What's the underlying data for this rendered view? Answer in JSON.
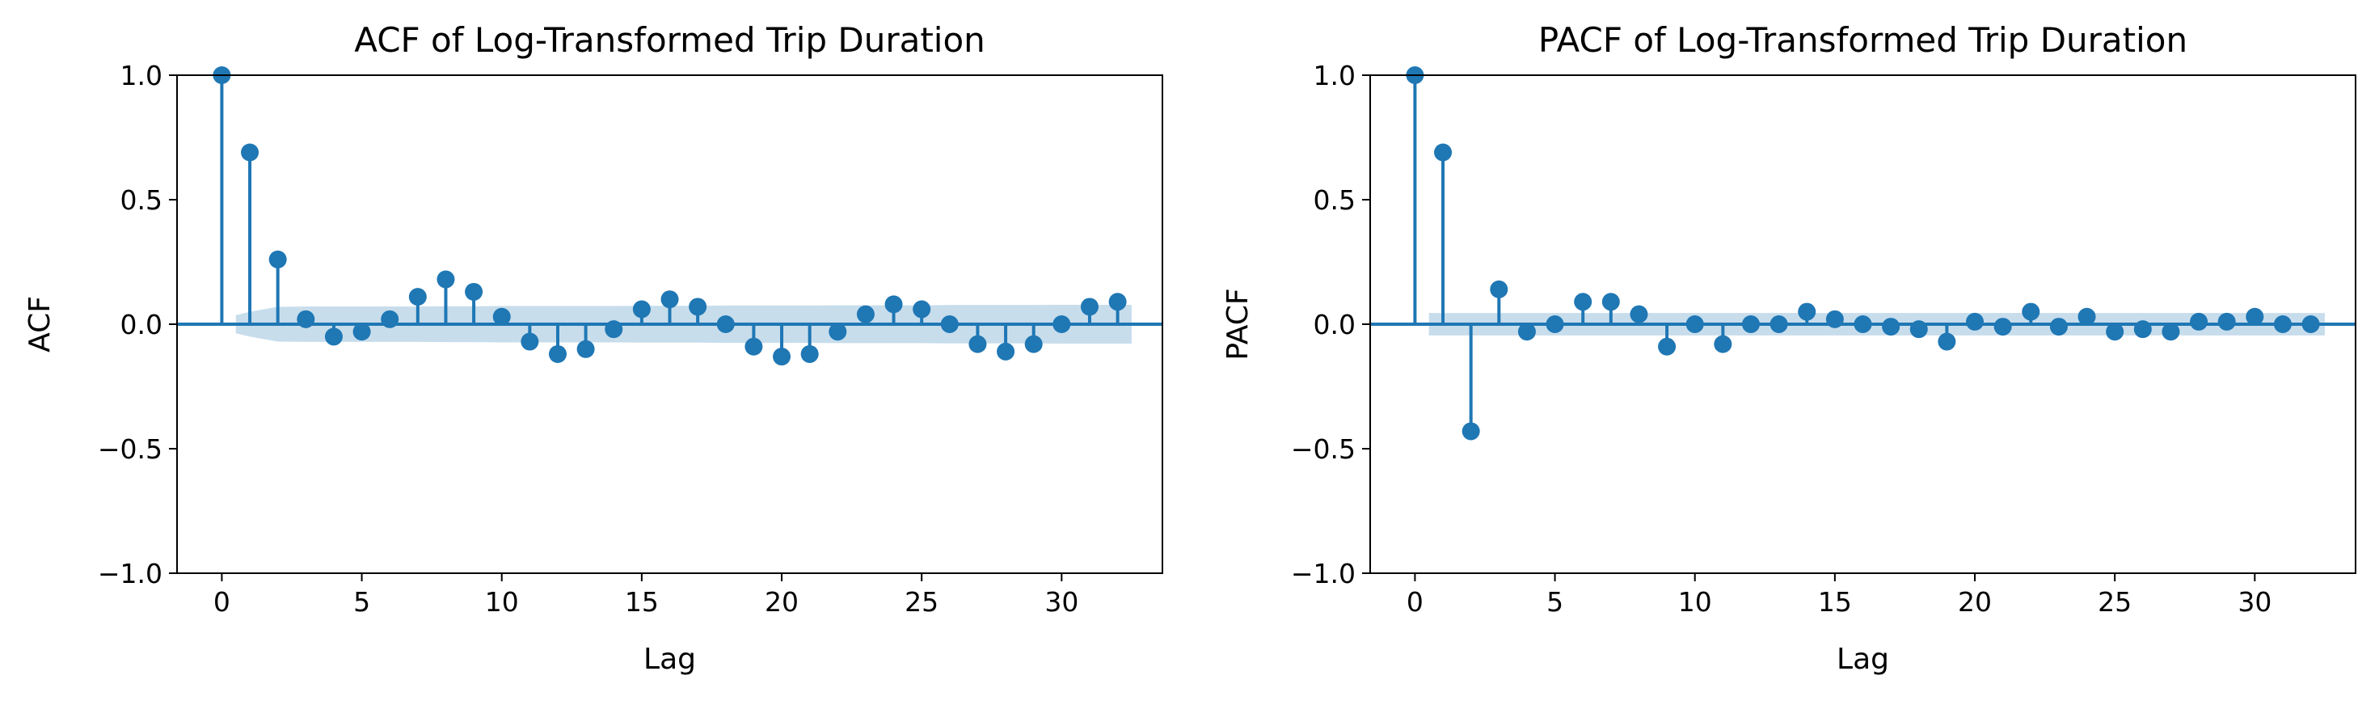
{
  "chart_data": [
    {
      "type": "stem",
      "title": "ACF of Log-Transformed Trip Duration",
      "xlabel": "Lag",
      "ylabel": "ACF",
      "xlim": [
        -1.6,
        33.6
      ],
      "ylim": [
        -1.0,
        1.0
      ],
      "xticks": [
        0,
        5,
        10,
        15,
        20,
        25,
        30
      ],
      "yticks": [
        -1.0,
        -0.5,
        0.0,
        0.5,
        1.0
      ],
      "xtick_labels": [
        "0",
        "5",
        "10",
        "15",
        "20",
        "25",
        "30"
      ],
      "ytick_labels": [
        "−1.0",
        "−0.5",
        "0.0",
        "0.5",
        "1.0"
      ],
      "grid": false,
      "color": "#1f77b4",
      "band_color": "#1f77b4",
      "series": [
        {
          "x": [
            0,
            1,
            2,
            3,
            4,
            5,
            6,
            7,
            8,
            9,
            10,
            11,
            12,
            13,
            14,
            15,
            16,
            17,
            18,
            19,
            20,
            21,
            22,
            23,
            24,
            25,
            26,
            27,
            28,
            29,
            30,
            31,
            32
          ],
          "values": [
            1.0,
            0.69,
            0.26,
            0.02,
            -0.05,
            -0.03,
            0.02,
            0.11,
            0.18,
            0.13,
            0.03,
            -0.07,
            -0.12,
            -0.1,
            -0.02,
            0.06,
            0.1,
            0.07,
            0.0,
            -0.09,
            -0.13,
            -0.12,
            -0.03,
            0.04,
            0.08,
            0.06,
            0.0,
            -0.08,
            -0.11,
            -0.08,
            0.0,
            0.07,
            0.09
          ]
        }
      ],
      "confidence_band": {
        "x": [
          0.5,
          1,
          2,
          3,
          4,
          5,
          6,
          7,
          8,
          9,
          10,
          11,
          12,
          13,
          14,
          15,
          16,
          17,
          18,
          19,
          20,
          21,
          22,
          23,
          24,
          25,
          26,
          27,
          28,
          29,
          30,
          31,
          32,
          32.5
        ],
        "upper": [
          0.036,
          0.05,
          0.07,
          0.071,
          0.071,
          0.071,
          0.071,
          0.071,
          0.072,
          0.072,
          0.073,
          0.073,
          0.073,
          0.073,
          0.073,
          0.074,
          0.074,
          0.074,
          0.075,
          0.075,
          0.075,
          0.075,
          0.076,
          0.076,
          0.076,
          0.076,
          0.077,
          0.077,
          0.077,
          0.077,
          0.078,
          0.078,
          0.078,
          0.078
        ],
        "lower": [
          -0.036,
          -0.05,
          -0.07,
          -0.071,
          -0.071,
          -0.071,
          -0.071,
          -0.071,
          -0.072,
          -0.072,
          -0.073,
          -0.073,
          -0.073,
          -0.073,
          -0.073,
          -0.074,
          -0.074,
          -0.074,
          -0.075,
          -0.075,
          -0.075,
          -0.075,
          -0.076,
          -0.076,
          -0.076,
          -0.076,
          -0.077,
          -0.077,
          -0.077,
          -0.077,
          -0.078,
          -0.078,
          -0.078,
          -0.078
        ]
      }
    },
    {
      "type": "stem",
      "title": "PACF of Log-Transformed Trip Duration",
      "xlabel": "Lag",
      "ylabel": "PACF",
      "xlim": [
        -1.6,
        33.6
      ],
      "ylim": [
        -1.0,
        1.0
      ],
      "xticks": [
        0,
        5,
        10,
        15,
        20,
        25,
        30
      ],
      "yticks": [
        -1.0,
        -0.5,
        0.0,
        0.5,
        1.0
      ],
      "xtick_labels": [
        "0",
        "5",
        "10",
        "15",
        "20",
        "25",
        "30"
      ],
      "ytick_labels": [
        "−1.0",
        "−0.5",
        "0.0",
        "0.5",
        "1.0"
      ],
      "grid": false,
      "color": "#1f77b4",
      "band_color": "#1f77b4",
      "series": [
        {
          "x": [
            0,
            1,
            2,
            3,
            4,
            5,
            6,
            7,
            8,
            9,
            10,
            11,
            12,
            13,
            14,
            15,
            16,
            17,
            18,
            19,
            20,
            21,
            22,
            23,
            24,
            25,
            26,
            27,
            28,
            29,
            30,
            31,
            32
          ],
          "values": [
            1.0,
            0.69,
            -0.43,
            0.14,
            -0.03,
            0.0,
            0.09,
            0.09,
            0.04,
            -0.09,
            0.0,
            -0.08,
            0.0,
            0.0,
            0.05,
            0.02,
            0.0,
            -0.01,
            -0.02,
            -0.07,
            0.01,
            -0.01,
            0.05,
            -0.01,
            0.03,
            -0.03,
            -0.02,
            -0.03,
            0.01,
            0.01,
            0.03,
            0.0,
            0.0
          ]
        }
      ],
      "confidence_band": {
        "x": [
          0.5,
          32.5
        ],
        "upper": [
          0.045,
          0.045
        ],
        "lower": [
          -0.045,
          -0.045
        ]
      }
    }
  ]
}
